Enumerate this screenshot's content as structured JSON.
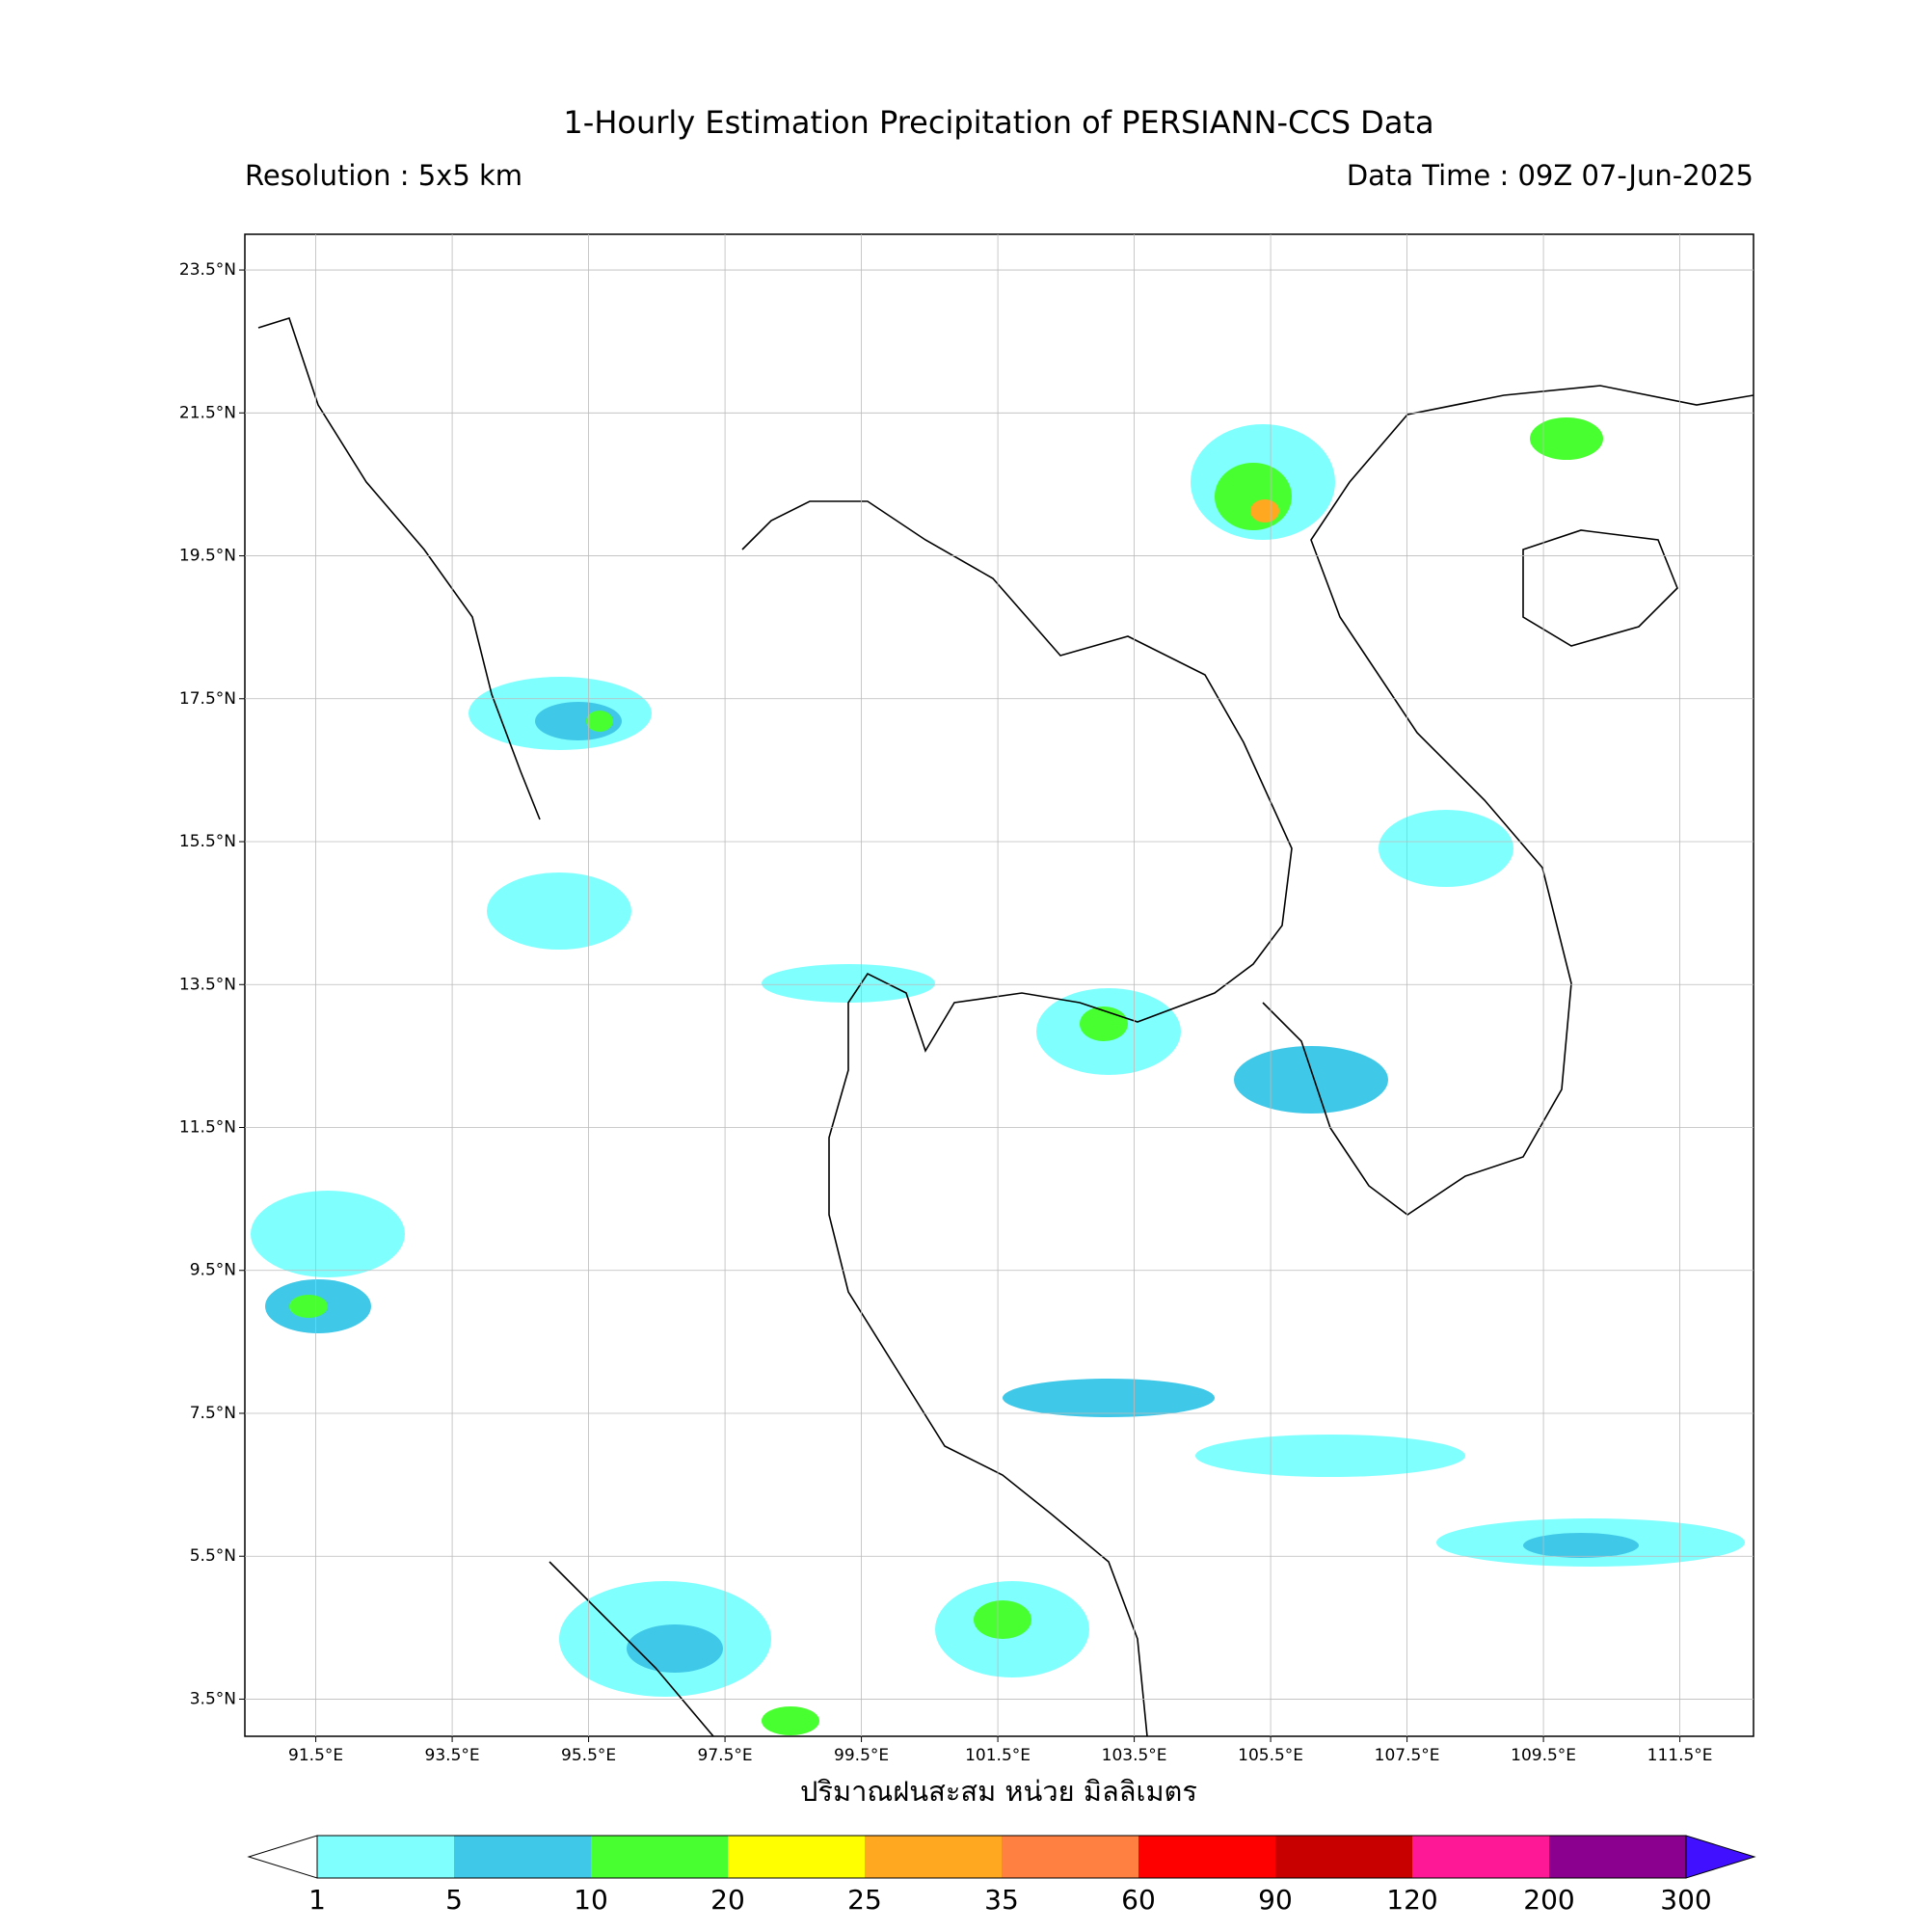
{
  "header": {
    "title": "1-Hourly Estimation Precipitation of PERSIANN-CCS Data",
    "resolution": "Resolution : 5x5 km",
    "data_time": "Data Time : 09Z 07-Jun-2025"
  },
  "map": {
    "lon_range": [
      90.46,
      112.58
    ],
    "lat_range": [
      2.98,
      24.0
    ],
    "lat_ticks": [
      {
        "value": 23.5,
        "label": "23.5°N"
      },
      {
        "value": 21.5,
        "label": "21.5°N"
      },
      {
        "value": 19.5,
        "label": "19.5°N"
      },
      {
        "value": 17.5,
        "label": "17.5°N"
      },
      {
        "value": 15.5,
        "label": "15.5°N"
      },
      {
        "value": 13.5,
        "label": "13.5°N"
      },
      {
        "value": 11.5,
        "label": "11.5°N"
      },
      {
        "value": 9.5,
        "label": "9.5°N"
      },
      {
        "value": 7.5,
        "label": "7.5°N"
      },
      {
        "value": 5.5,
        "label": "5.5°N"
      },
      {
        "value": 3.5,
        "label": "3.5°N"
      }
    ],
    "lon_ticks": [
      {
        "value": 91.5,
        "label": "91.5°E"
      },
      {
        "value": 93.5,
        "label": "93.5°E"
      },
      {
        "value": 95.5,
        "label": "95.5°E"
      },
      {
        "value": 97.5,
        "label": "97.5°E"
      },
      {
        "value": 99.5,
        "label": "99.5°E"
      },
      {
        "value": 101.5,
        "label": "101.5°E"
      },
      {
        "value": 103.5,
        "label": "103.5°E"
      },
      {
        "value": 105.5,
        "label": "105.5°E"
      },
      {
        "value": 107.5,
        "label": "107.5°E"
      },
      {
        "value": 109.5,
        "label": "109.5°E"
      },
      {
        "value": 111.5,
        "label": "111.5°E"
      }
    ],
    "x_label": "ปริมาณฝนสะสม หน่วย มิลลิเมตร",
    "grid": true
  },
  "colorbar": {
    "levels": [
      1,
      5,
      10,
      20,
      25,
      35,
      60,
      90,
      120,
      200,
      300
    ],
    "colors": [
      "#80ffff",
      "#40c8e8",
      "#48ff30",
      "#ffff00",
      "#ffa820",
      "#ff8040",
      "#ff0000",
      "#c80000",
      "#ff1896",
      "#8c0090"
    ],
    "under_color": "#ffffff",
    "over_color": "#4010ff"
  }
}
